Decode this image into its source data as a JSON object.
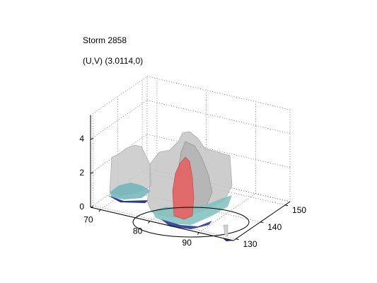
{
  "chart_data": {
    "type": "surface3d",
    "title": "Storm 2858",
    "subtitle": "(U,V) (3.0114,0)",
    "xlim": [
      68,
      97
    ],
    "xticks": [
      70,
      80,
      90
    ],
    "ylim": [
      129,
      152
    ],
    "yticks": [
      130,
      140,
      150
    ],
    "zlim": [
      0,
      5.4
    ],
    "zticks": [
      0,
      2,
      4
    ],
    "grid": true
  }
}
